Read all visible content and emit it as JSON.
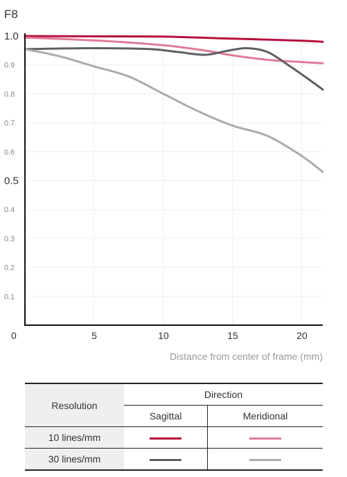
{
  "chart_data": {
    "type": "line",
    "title": "F8",
    "xlabel": "Distance from center of frame (mm)",
    "ylabel": "",
    "xlim": [
      0,
      21.5
    ],
    "ylim": [
      0,
      1.0
    ],
    "x_ticks": [
      0,
      5,
      10,
      15,
      20
    ],
    "x_tick_labels": [
      "0",
      "5",
      "10",
      "15",
      "20"
    ],
    "y_ticks": [
      0.1,
      0.2,
      0.3,
      0.4,
      0.5,
      0.6,
      0.7,
      0.8,
      0.9,
      1.0
    ],
    "y_tick_labels": [
      "0.1",
      "0.2",
      "0.3",
      "0.4",
      "0.5",
      "0.6",
      "0.7",
      "0.8",
      "0.9",
      "1.0"
    ],
    "grid": true,
    "series": [
      {
        "name": "10 lines/mm Sagittal",
        "color": "#b5103c",
        "x": [
          0,
          5,
          10,
          15,
          20,
          21.5
        ],
        "y": [
          1.0,
          0.999,
          0.998,
          0.991,
          0.984,
          0.98
        ]
      },
      {
        "name": "10 lines/mm Meridional",
        "color": "#e07b96",
        "x": [
          0,
          5,
          10,
          13,
          15,
          17.5,
          20,
          21.5
        ],
        "y": [
          0.995,
          0.985,
          0.968,
          0.95,
          0.933,
          0.918,
          0.91,
          0.906
        ]
      },
      {
        "name": "30 lines/mm Sagittal",
        "color": "#5e5e62",
        "x": [
          0,
          5,
          9,
          11,
          13,
          14.5,
          16,
          17.5,
          19,
          20.5,
          21.5
        ],
        "y": [
          0.955,
          0.958,
          0.955,
          0.945,
          0.935,
          0.948,
          0.958,
          0.945,
          0.9,
          0.85,
          0.815
        ]
      },
      {
        "name": "30 lines/mm Meridional",
        "color": "#ababad",
        "x": [
          0,
          2.5,
          5,
          7.5,
          10,
          12.5,
          15,
          17.5,
          20,
          21.5
        ],
        "y": [
          0.955,
          0.93,
          0.895,
          0.86,
          0.8,
          0.74,
          0.69,
          0.655,
          0.585,
          0.53
        ]
      }
    ]
  },
  "legend": {
    "resolution_header": "Resolution",
    "direction_header": "Direction",
    "sagittal": "Sagittal",
    "meridional": "Meridional",
    "row1": "10 lines/mm",
    "row2": "30 lines/mm",
    "colors": {
      "r10_sag": "#b5103c",
      "r10_mer": "#e07b96",
      "r30_sag": "#5e5e62",
      "r30_mer": "#ababad"
    }
  }
}
